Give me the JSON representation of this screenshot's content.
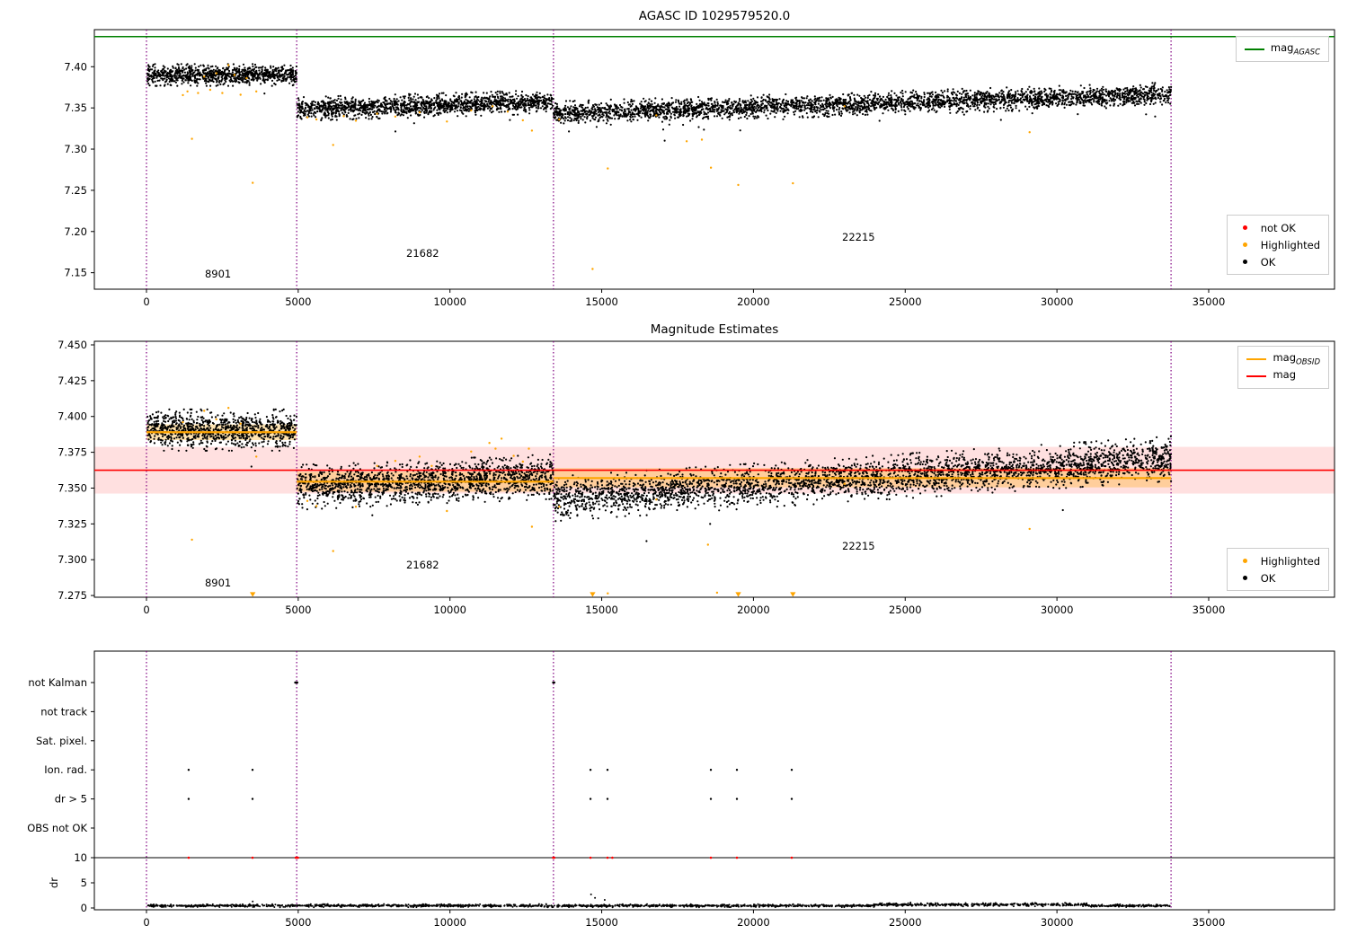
{
  "colors": {
    "green": "#008000",
    "red": "#ff0000",
    "orange": "#ffa500",
    "black": "#000000",
    "purple": "#800080"
  },
  "chart_data": [
    {
      "type": "scatter",
      "title": "AGASC ID 1029579520.0",
      "xlim": [
        -1717,
        39146
      ],
      "ylim": [
        7.13,
        7.445
      ],
      "xticks": [
        0,
        5000,
        10000,
        15000,
        20000,
        25000,
        30000,
        35000
      ],
      "xticklabels": [
        "0",
        "5000",
        "10000",
        "15000",
        "20000",
        "25000",
        "30000",
        "35000"
      ],
      "yticks": [
        7.15,
        7.2,
        7.25,
        7.3,
        7.35,
        7.4
      ],
      "yticklabels": [
        "7.15",
        "7.20",
        "7.25",
        "7.30",
        "7.35",
        "7.40"
      ],
      "obsid_boundaries": [
        0,
        4950,
        13410,
        33760
      ],
      "mag_agasc_line": {
        "y": 7.4365,
        "color_key": "green"
      },
      "ok_segments": [
        {
          "obsid": "8901",
          "x0": 30,
          "x1": 4950,
          "n": 950,
          "y_start": 7.39,
          "y_end": 7.39,
          "std": 0.0055
        },
        {
          "obsid": "21682",
          "x0": 4950,
          "x1": 13410,
          "n": 1500,
          "y_start": 7.3485,
          "y_end": 7.3575,
          "std": 0.006
        },
        {
          "obsid": "22215",
          "x0": 13410,
          "x1": 33760,
          "n": 3200,
          "y_start": 7.3435,
          "y_end": 7.3665,
          "std": 0.006
        }
      ],
      "highlighted_points": [
        [
          1200,
          7.3655
        ],
        [
          1350,
          7.37
        ],
        [
          1500,
          7.3125
        ],
        [
          1700,
          7.368
        ],
        [
          1900,
          7.388
        ],
        [
          2100,
          7.372
        ],
        [
          2300,
          7.392
        ],
        [
          2500,
          7.368
        ],
        [
          2700,
          7.402
        ],
        [
          2900,
          7.39
        ],
        [
          3100,
          7.366
        ],
        [
          3300,
          7.386
        ],
        [
          3500,
          7.259
        ],
        [
          3620,
          7.37
        ],
        [
          5300,
          7.3385
        ],
        [
          5600,
          7.336
        ],
        [
          6150,
          7.305
        ],
        [
          6500,
          7.34
        ],
        [
          6900,
          7.3345
        ],
        [
          7600,
          7.343
        ],
        [
          8200,
          7.3395
        ],
        [
          9000,
          7.3445
        ],
        [
          9900,
          7.3335
        ],
        [
          10700,
          7.347
        ],
        [
          11400,
          7.352
        ],
        [
          11900,
          7.3455
        ],
        [
          12400,
          7.335
        ],
        [
          12700,
          7.3225
        ],
        [
          13600,
          7.336
        ],
        [
          14700,
          7.1545
        ],
        [
          15200,
          7.2765
        ],
        [
          16800,
          7.341
        ],
        [
          17800,
          7.3095
        ],
        [
          18300,
          7.3115
        ],
        [
          18600,
          7.2775
        ],
        [
          19500,
          7.2565
        ],
        [
          21300,
          7.2585
        ],
        [
          23000,
          7.352
        ],
        [
          29100,
          7.3205
        ]
      ],
      "annotations": [
        {
          "text": "8901",
          "x": 1925,
          "y": 7.144
        },
        {
          "text": "21682",
          "x": 8558,
          "y": 7.169
        },
        {
          "text": "22215",
          "x": 22920,
          "y": 7.189
        }
      ],
      "legend_top": {
        "items": [
          {
            "main": "mag",
            "sub": "AGASC",
            "swatch": "line",
            "color_key": "green"
          }
        ]
      },
      "legend_bottom": {
        "items": [
          {
            "label": "not OK",
            "swatch": "dot",
            "color_key": "red"
          },
          {
            "label": "Highlighted",
            "swatch": "dot",
            "color_key": "orange"
          },
          {
            "label": "OK",
            "swatch": "dot",
            "color_key": "black"
          }
        ]
      }
    },
    {
      "type": "scatter",
      "title": "Magnitude Estimates",
      "xlim": [
        -1717,
        39146
      ],
      "ylim": [
        7.2738,
        7.4525
      ],
      "xticks": [
        0,
        5000,
        10000,
        15000,
        20000,
        25000,
        30000,
        35000
      ],
      "xticklabels": [
        "0",
        "5000",
        "10000",
        "15000",
        "20000",
        "25000",
        "30000",
        "35000"
      ],
      "yticks": [
        7.275,
        7.3,
        7.325,
        7.35,
        7.375,
        7.4,
        7.425,
        7.45
      ],
      "yticklabels": [
        "7.275",
        "7.300",
        "7.325",
        "7.350",
        "7.375",
        "7.400",
        "7.425",
        "7.450"
      ],
      "obsid_boundaries": [
        0,
        4950,
        13410,
        33760
      ],
      "mag_line": {
        "y": 7.3625,
        "color_key": "red"
      },
      "mag_band": {
        "y0": 7.3462,
        "y1": 7.3788,
        "color_key": "red",
        "opacity": 0.12
      },
      "obsid_mag_lines": [
        {
          "x0": 0,
          "x1": 4950,
          "y": 7.389
        },
        {
          "x0": 4950,
          "x1": 13410,
          "y": 7.3545
        },
        {
          "x0": 13410,
          "x1": 33760,
          "y": 7.357
        }
      ],
      "obsid_mag_bands": [
        {
          "x0": 0,
          "x1": 4950,
          "y0": 7.3835,
          "y1": 7.3945
        },
        {
          "x0": 4950,
          "x1": 13410,
          "y0": 7.3475,
          "y1": 7.3615
        },
        {
          "x0": 13410,
          "x1": 33760,
          "y0": 7.3505,
          "y1": 7.364
        }
      ],
      "ok_segments": [
        {
          "obsid": "8901",
          "x0": 30,
          "x1": 4950,
          "n": 950,
          "y_start": 7.3905,
          "y_end": 7.3905,
          "std": 0.006
        },
        {
          "obsid": "21682",
          "x0": 4950,
          "x1": 13410,
          "n": 1500,
          "y_start": 7.3505,
          "y_end": 7.358,
          "std": 0.0065
        },
        {
          "obsid": "22215",
          "x0": 13410,
          "x1": 33760,
          "n": 3200,
          "y_start": 7.3425,
          "y_end": 7.3705,
          "std": 0.0065
        }
      ],
      "highlighted_points": [
        [
          1200,
          7.396
        ],
        [
          1500,
          7.314
        ],
        [
          1900,
          7.404
        ],
        [
          2300,
          7.398
        ],
        [
          2700,
          7.406
        ],
        [
          3100,
          7.395
        ],
        [
          3620,
          7.372
        ],
        [
          5300,
          7.341
        ],
        [
          5600,
          7.3375
        ],
        [
          6150,
          7.306
        ],
        [
          6900,
          7.337
        ],
        [
          7600,
          7.3655
        ],
        [
          8200,
          7.369
        ],
        [
          9000,
          7.372
        ],
        [
          9400,
          7.3655
        ],
        [
          9900,
          7.334
        ],
        [
          10700,
          7.3755
        ],
        [
          11300,
          7.3815
        ],
        [
          11500,
          7.3775
        ],
        [
          11700,
          7.3845
        ],
        [
          12100,
          7.3725
        ],
        [
          12400,
          7.3685
        ],
        [
          12600,
          7.3775
        ],
        [
          12700,
          7.323
        ],
        [
          13600,
          7.337
        ],
        [
          15200,
          7.2765
        ],
        [
          16800,
          7.342
        ],
        [
          18500,
          7.3105
        ],
        [
          18800,
          7.277
        ],
        [
          23000,
          7.353
        ],
        [
          29100,
          7.3215
        ]
      ],
      "clipped_low_x": [
        3500,
        14700,
        19500,
        21300
      ],
      "annotations": [
        {
          "text": "8901",
          "x": 1925,
          "y": 7.2813
        },
        {
          "text": "21682",
          "x": 8558,
          "y": 7.2938
        },
        {
          "text": "22215",
          "x": 22920,
          "y": 7.307
        }
      ],
      "legend_top": {
        "items": [
          {
            "main": "mag",
            "sub": "OBSID",
            "swatch": "line",
            "color_key": "orange"
          },
          {
            "main": "mag",
            "sub": "",
            "swatch": "line",
            "color_key": "red"
          }
        ]
      },
      "legend_bottom": {
        "items": [
          {
            "label": "Highlighted",
            "swatch": "dot",
            "color_key": "orange"
          },
          {
            "label": "OK",
            "swatch": "dot",
            "color_key": "black"
          }
        ]
      }
    },
    {
      "type": "flags",
      "xlim": [
        -1717,
        39146
      ],
      "xticks": [
        0,
        5000,
        10000,
        15000,
        20000,
        25000,
        30000,
        35000
      ],
      "xticklabels": [
        "0",
        "5000",
        "10000",
        "15000",
        "20000",
        "25000",
        "30000",
        "35000"
      ],
      "obsid_boundaries": [
        0,
        4950,
        13410,
        33760
      ],
      "categories": [
        "not Kalman",
        "not track",
        "Sat. pixel.",
        "Ion. rad.",
        "dr > 5",
        "OBS not OK"
      ],
      "flag_points": {
        "not Kalman": [
          4900,
          4935,
          4970,
          13400,
          13438
        ],
        "not track": [],
        "Sat. pixel.": [],
        "Ion. rad.": [
          1390,
          3495,
          14630,
          15190,
          18595,
          19455,
          21260
        ],
        "dr > 5": [
          1390,
          3495,
          14630,
          15190,
          18595,
          19455,
          21260
        ],
        "OBS not OK": []
      },
      "dr": {
        "label": "dr",
        "ticks": [
          0,
          5,
          10
        ],
        "ticklabels": [
          "0",
          "5",
          "10"
        ],
        "cap_line": 10,
        "clipped_x": [
          1390,
          3495,
          4920,
          4955,
          4990,
          13400,
          13438,
          14630,
          15190,
          15350,
          18595,
          19455,
          21260
        ],
        "scatter": {
          "x0": 30,
          "x1": 33760,
          "n": 2100,
          "base": 0.45,
          "spread": 0.35,
          "bump": {
            "x0": 24000,
            "x1": 31000,
            "add": 0.35
          }
        },
        "extra_points": [
          [
            3500,
            1.3
          ],
          [
            14650,
            2.7
          ],
          [
            14780,
            2.0
          ],
          [
            15100,
            1.6
          ]
        ]
      }
    }
  ]
}
